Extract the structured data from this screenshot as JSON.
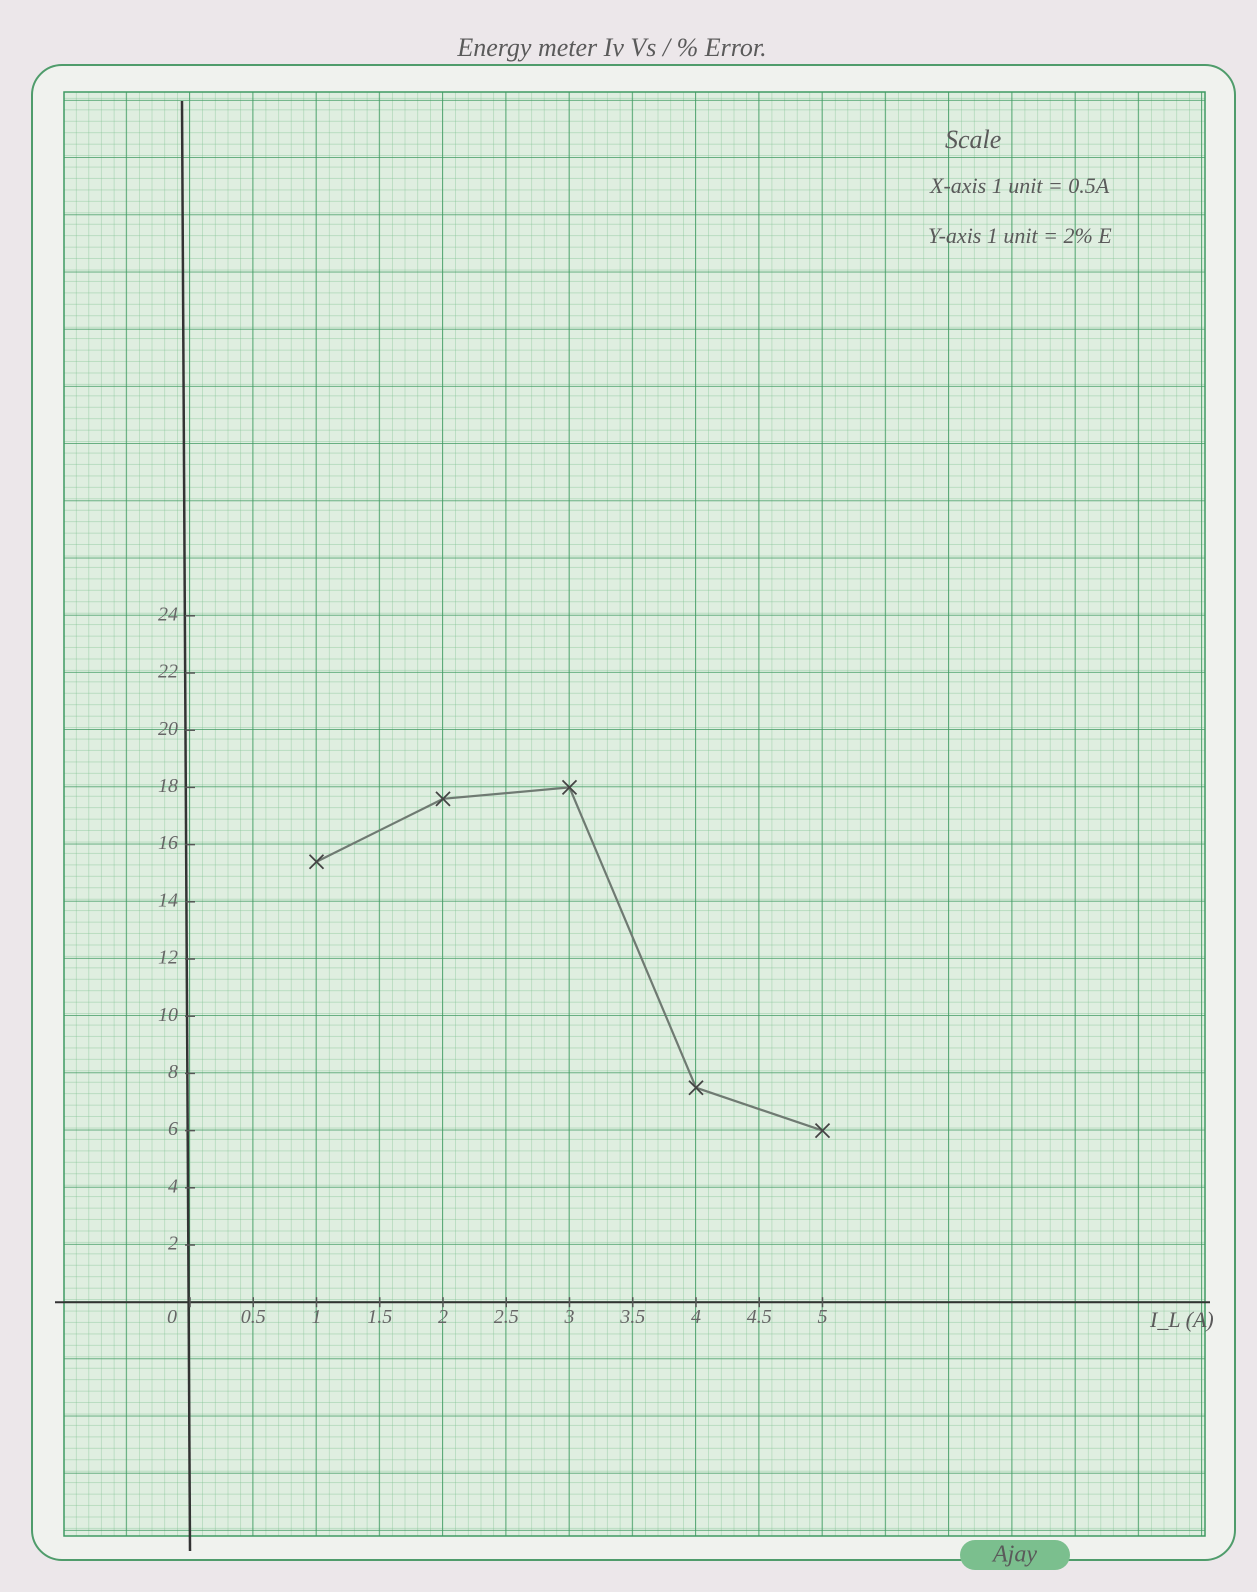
{
  "chart_data": {
    "type": "line",
    "title": "Energy meter  Iv Vs / % Error.",
    "scale_title": "Scale",
    "scale_notes": [
      "X-axis 1 unit = 0.5A",
      "Y-axis 1 unit = 2% E"
    ],
    "x_label": "I_L (A)",
    "signature": "Ajay",
    "x": [
      1,
      2,
      3,
      4,
      5
    ],
    "values": [
      15.4,
      17.6,
      18,
      7.5,
      6
    ],
    "color": "#6f7a72",
    "xlim": [
      -1,
      8
    ],
    "ylim": [
      -8,
      42
    ],
    "xticks": [
      0,
      0.5,
      1,
      1.5,
      2,
      2.5,
      3,
      3.5,
      4,
      4.5,
      5
    ],
    "yticks": [
      2,
      4,
      6,
      8,
      10,
      12,
      14,
      16,
      18,
      20,
      22,
      24
    ]
  }
}
